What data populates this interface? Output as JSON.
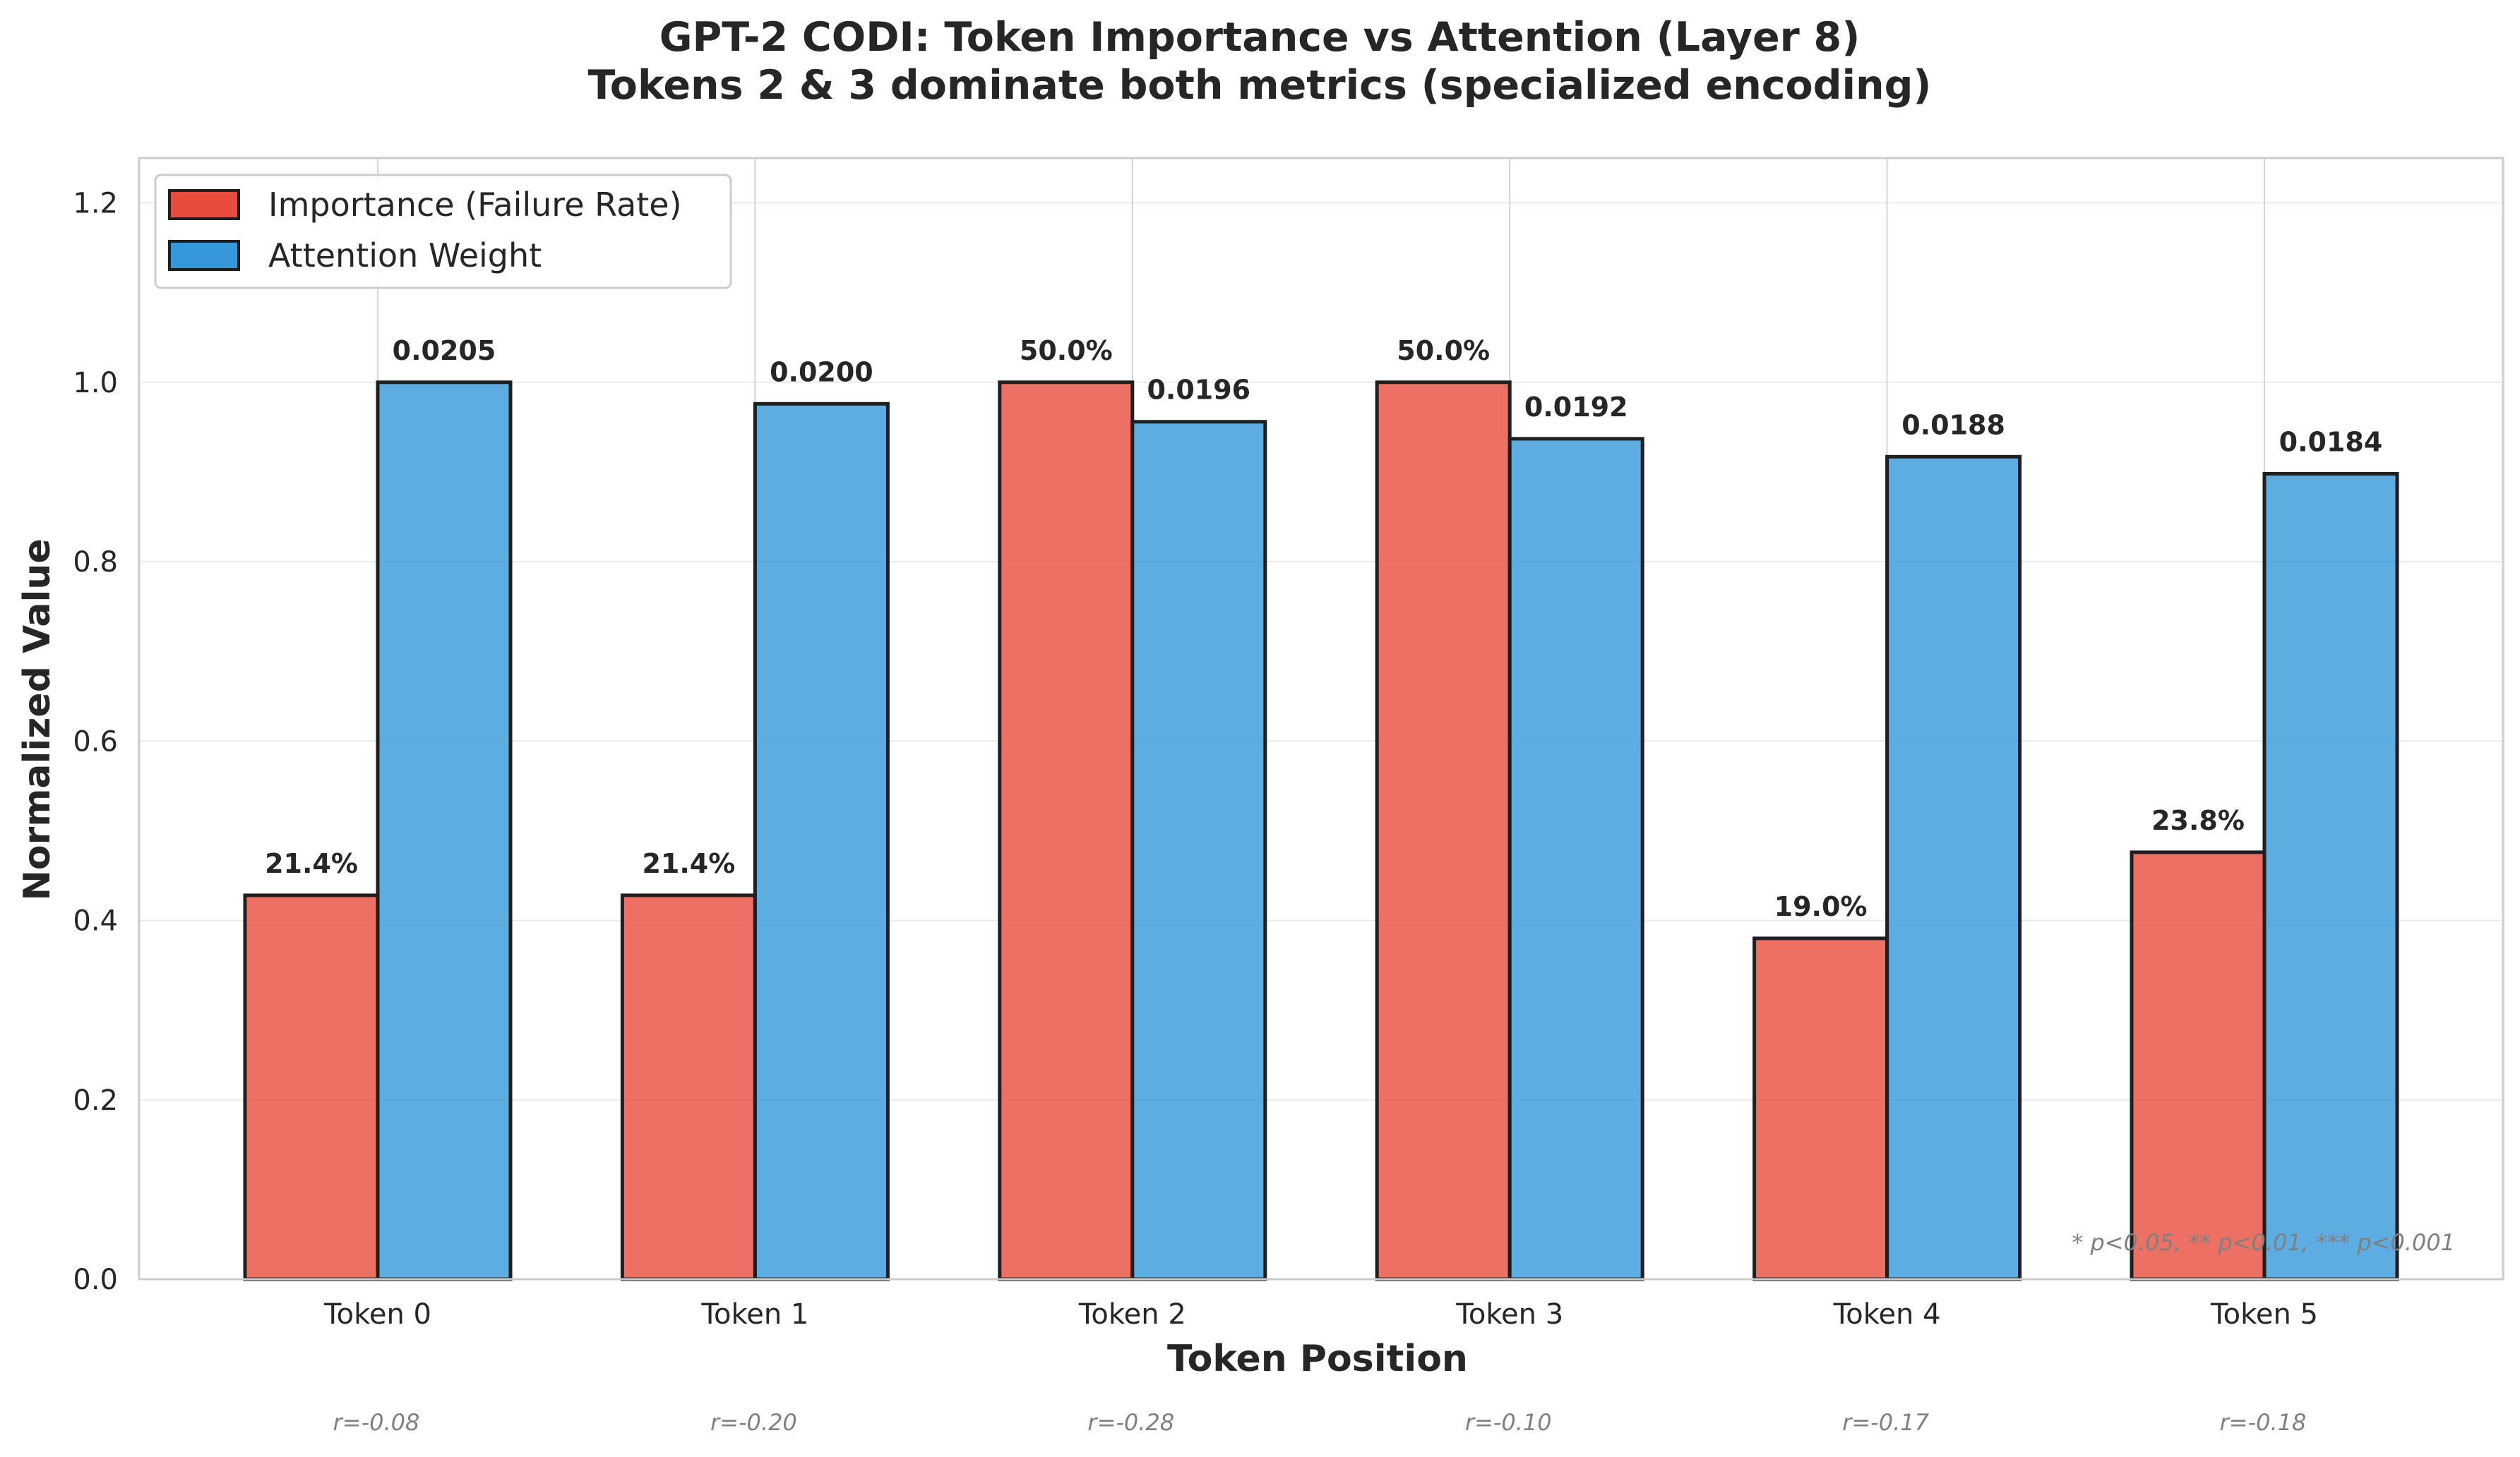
{
  "chart_data": {
    "type": "bar",
    "title": "GPT-2 CODI: Token Importance vs Attention (Layer 8)",
    "subtitle": "Tokens 2 & 3 dominate both metrics (specialized encoding)",
    "xlabel": "Token Position",
    "ylabel": "Normalized Value",
    "ylim": [
      0,
      1.25
    ],
    "yticks": [
      "0.0",
      "0.2",
      "0.4",
      "0.6",
      "0.8",
      "1.0",
      "1.2"
    ],
    "categories": [
      "Token 0",
      "Token 1",
      "Token 2",
      "Token 3",
      "Token 4",
      "Token 5"
    ],
    "series": [
      {
        "name": "Importance (Failure Rate)",
        "color": "#e74c3c",
        "values": [
          0.428,
          0.428,
          1.0,
          1.0,
          0.38,
          0.476
        ],
        "labels": [
          "21.4%",
          "21.4%",
          "50.0%",
          "50.0%",
          "19.0%",
          "23.8%"
        ]
      },
      {
        "name": "Attention Weight",
        "color": "#3498db",
        "values": [
          1.0,
          0.976,
          0.956,
          0.937,
          0.917,
          0.898
        ],
        "labels": [
          "0.0205",
          "0.0200",
          "0.0196",
          "0.0192",
          "0.0188",
          "0.0184"
        ]
      }
    ],
    "correlations": [
      "r=-0.08",
      "r=-0.20",
      "r=-0.28",
      "r=-0.10",
      "r=-0.17",
      "r=-0.18"
    ],
    "significance_note": "* p<0.05, ** p<0.01, *** p<0.001",
    "legend_position": "top-left",
    "grid": true
  }
}
